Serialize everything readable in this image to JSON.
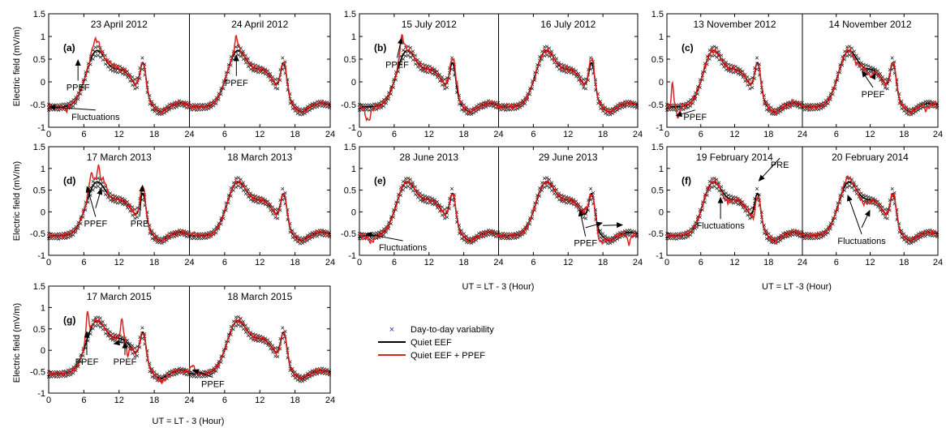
{
  "figure": {
    "ylabel": "Electric field (mV/m)",
    "xlabel": "UT = LT - 3 (Hour)",
    "legend": {
      "placement": "center",
      "items": [
        {
          "label": "Day-to-day variability",
          "marker": "x",
          "color": "#2a2ad0"
        },
        {
          "label": "Quiet EEF",
          "color": "#000000"
        },
        {
          "label": "Quiet EEF + PPEF",
          "color": "#dd2222"
        }
      ]
    },
    "colors": {
      "variability": "#2a2ad0",
      "quiet": "#000000",
      "disturbed": "#dd2222"
    }
  },
  "chart_data": [
    {
      "id": "a",
      "type": "line",
      "panel_label": "(a)",
      "dates": [
        "23 April 2012",
        "24 April 2012"
      ],
      "ylim": [
        -1,
        1.5
      ],
      "yticks": [
        "1.5",
        "1",
        "0.5",
        "0",
        "-0.5",
        "-1"
      ],
      "xlim": [
        0,
        24
      ],
      "xticks": [
        "0",
        "6",
        "12",
        "18",
        "24",
        "6",
        "12",
        "18",
        "24"
      ],
      "xlabel": "",
      "ylabel": "Electric field (mV/m)",
      "annotations": [
        {
          "text": "PPEF",
          "x": 5,
          "y": 0.5,
          "tx": 5,
          "ty": -0.15
        },
        {
          "text": "PPEF",
          "x": 32,
          "y": 0.6,
          "tx": 32,
          "ty": -0.05
        },
        {
          "text": "Fluctuations",
          "x": -1,
          "y": -0.55,
          "tx": 8,
          "ty": -0.8
        }
      ]
    },
    {
      "id": "b",
      "type": "line",
      "panel_label": "(b)",
      "dates": [
        "15 July 2012",
        "16 July 2012"
      ],
      "ylim": [
        -1,
        1.5
      ],
      "yticks": [
        "1.5",
        "1",
        "0.5",
        "0",
        "-0.5",
        "-1"
      ],
      "xlim": [
        0,
        24
      ],
      "xticks": [
        "0",
        "6",
        "12",
        "18",
        "24",
        "6",
        "12",
        "18",
        "24"
      ],
      "xlabel": "",
      "ylabel": "",
      "annotations": [
        {
          "text": "PPEF",
          "x": 7.3,
          "y": 0.98,
          "tx": 6.5,
          "ty": 0.35
        }
      ]
    },
    {
      "id": "c",
      "type": "line",
      "panel_label": "(c)",
      "dates": [
        "13 November 2012",
        "14 November 2012"
      ],
      "ylim": [
        -1,
        1.5
      ],
      "yticks": [
        "1.5",
        "1",
        "0.5",
        "0",
        "-0.5",
        "-1"
      ],
      "xlim": [
        0,
        24
      ],
      "xticks": [
        "0",
        "6",
        "12",
        "18",
        "24",
        "6",
        "12",
        "18",
        "24"
      ],
      "xlabel": "",
      "ylabel": "",
      "annotations": [
        {
          "text": "PPEF",
          "x": 1.5,
          "y": -0.75,
          "tx": 5,
          "ty": -0.8
        },
        {
          "text": "PPEF",
          "x": 34.5,
          "y": 0.25,
          "tx": 36.5,
          "ty": -0.3
        },
        {
          "text": "",
          "x": 37,
          "y": 0.2,
          "tx": 36.5,
          "ty": -0.1
        }
      ]
    },
    {
      "id": "d",
      "type": "line",
      "panel_label": "(d)",
      "dates": [
        "17 March 2013",
        "18 March 2013"
      ],
      "ylim": [
        -1,
        1.5
      ],
      "yticks": [
        "1.5",
        "1",
        "0.5",
        "0",
        "-0.5",
        "-1"
      ],
      "xlim": [
        0,
        24
      ],
      "xticks": [
        "0",
        "6",
        "12",
        "18",
        "24",
        "6",
        "12",
        "18",
        "24"
      ],
      "xlabel": "",
      "ylabel": "Electric field (mV/m)",
      "annotations": [
        {
          "text": "PPEF",
          "x": 6.5,
          "y": 0.6,
          "tx": 8,
          "ty": -0.3
        },
        {
          "text": "",
          "x": 9,
          "y": 0.55,
          "tx": 8,
          "ty": -0.1
        },
        {
          "text": "PRE",
          "x": 16,
          "y": 0.62,
          "tx": 15.5,
          "ty": -0.3
        }
      ]
    },
    {
      "id": "e",
      "type": "line",
      "panel_label": "(e)",
      "dates": [
        "28 June 2013",
        "29 June 2013"
      ],
      "ylim": [
        -1,
        1.5
      ],
      "yticks": [
        "1.5",
        "1",
        "0.5",
        "0",
        "-0.5",
        "-1"
      ],
      "xlim": [
        0,
        24
      ],
      "xticks": [
        "0",
        "6",
        "12",
        "18",
        "24",
        "6",
        "12",
        "18",
        "24"
      ],
      "xlabel": "UT = LT - 3 (Hour)",
      "ylabel": "",
      "annotations": [
        {
          "text": "Fluctuations",
          "x": 1,
          "y": -0.5,
          "tx": 7.5,
          "ty": -0.85
        },
        {
          "text": "PPEF",
          "x": 38,
          "y": 0.05,
          "tx": 39,
          "ty": -0.75
        },
        {
          "text": "",
          "x": 42,
          "y": -0.25,
          "tx": 39,
          "ty": -0.55
        },
        {
          "text": "",
          "x": 45.5,
          "y": -0.3,
          "tx": 42,
          "ty": -0.5
        }
      ]
    },
    {
      "id": "f",
      "type": "line",
      "panel_label": "(f)",
      "dates": [
        "19 February 2014",
        "20 February 2014"
      ],
      "ylim": [
        -1,
        1.5
      ],
      "yticks": [
        "1.5",
        "1",
        "0.5",
        "0",
        "-0.5",
        "-1"
      ],
      "xlim": [
        0,
        24
      ],
      "xticks": [
        "0",
        "6",
        "12",
        "18",
        "24",
        "6",
        "12",
        "18",
        "24"
      ],
      "xlabel": "UT = LT -3 (Hour)",
      "ylabel": "",
      "annotations": [
        {
          "text": "PRE",
          "x": 16.2,
          "y": 0.7,
          "tx": 20,
          "ty": 1.05
        },
        {
          "text": "Fluctuations",
          "x": 9.5,
          "y": 0.35,
          "tx": 9.5,
          "ty": -0.35
        },
        {
          "text": "Fluctuations",
          "x": 32,
          "y": 0.4,
          "tx": 34.5,
          "ty": -0.7
        },
        {
          "text": "",
          "x": 36,
          "y": 0.05,
          "tx": 34.5,
          "ty": -0.55
        }
      ]
    },
    {
      "id": "g",
      "type": "line",
      "panel_label": "(g)",
      "dates": [
        "17 March 2015",
        "18 March 2015"
      ],
      "ylim": [
        -1,
        1.5
      ],
      "yticks": [
        "1.5",
        "1",
        "0.5",
        "0",
        "-0.5",
        "-1"
      ],
      "xlim": [
        0,
        24
      ],
      "xticks": [
        "0",
        "6",
        "12",
        "18",
        "24",
        "6",
        "12",
        "18",
        "24"
      ],
      "xlabel": "UT = LT - 3 (Hour)",
      "ylabel": "Electric field (mV/m)",
      "annotations": [
        {
          "text": "PPEF",
          "x": 6.5,
          "y": 0.45,
          "tx": 6.5,
          "ty": -0.3
        },
        {
          "text": "PPEF",
          "x": 13,
          "y": 0.2,
          "tx": 13,
          "ty": -0.3
        },
        {
          "text": "",
          "x": 11,
          "y": 0.15,
          "tx": 12.5,
          "ty": 0.0
        },
        {
          "text": "PPEF",
          "x": 24.5,
          "y": -0.45,
          "tx": 28,
          "ty": -0.82
        }
      ]
    }
  ]
}
